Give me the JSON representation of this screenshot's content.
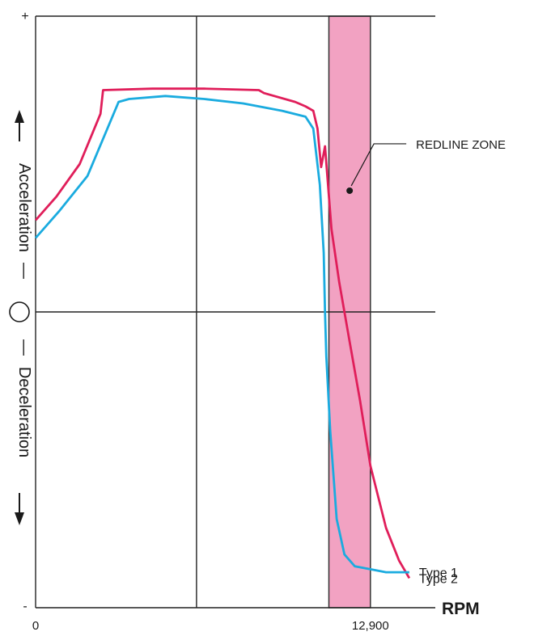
{
  "chart_data": {
    "type": "line",
    "title": "",
    "xlabel": "RPM",
    "x_tick_labels": [
      {
        "value": 0,
        "label": "0"
      },
      {
        "value": 12900,
        "label": "12,900"
      }
    ],
    "xlim": [
      0,
      15400
    ],
    "ylim": [
      -1,
      1
    ],
    "y_labels": {
      "plus": "+",
      "minus": "-",
      "acceleration": "Acceleration",
      "deceleration": "Deceleration",
      "separator": "—"
    },
    "redline_zone": {
      "label": "REDLINE ZONE",
      "x_start": 11300,
      "x_end": 12900,
      "color": "#f2a2c2"
    },
    "grid": true,
    "series": [
      {
        "name": "Type 2",
        "color": "#e01e5a",
        "points": [
          [
            0,
            0.31
          ],
          [
            800,
            0.39
          ],
          [
            1700,
            0.5
          ],
          [
            2500,
            0.67
          ],
          [
            2600,
            0.75
          ],
          [
            4500,
            0.755
          ],
          [
            6500,
            0.755
          ],
          [
            8600,
            0.75
          ],
          [
            8800,
            0.74
          ],
          [
            10000,
            0.71
          ],
          [
            10400,
            0.695
          ],
          [
            10700,
            0.68
          ],
          [
            10860,
            0.62
          ],
          [
            11000,
            0.49
          ],
          [
            11150,
            0.56
          ],
          [
            11400,
            0.28
          ],
          [
            11700,
            0.1
          ],
          [
            12100,
            -0.1
          ],
          [
            12500,
            -0.3
          ],
          [
            12900,
            -0.52
          ],
          [
            13500,
            -0.73
          ],
          [
            14000,
            -0.84
          ],
          [
            14400,
            -0.9
          ]
        ]
      },
      {
        "name": "Type 1",
        "color": "#1aabdf",
        "points": [
          [
            0,
            0.25
          ],
          [
            900,
            0.34
          ],
          [
            2000,
            0.46
          ],
          [
            3200,
            0.71
          ],
          [
            3600,
            0.72
          ],
          [
            5000,
            0.73
          ],
          [
            6500,
            0.72
          ],
          [
            8000,
            0.705
          ],
          [
            9500,
            0.68
          ],
          [
            10400,
            0.66
          ],
          [
            10700,
            0.62
          ],
          [
            10950,
            0.43
          ],
          [
            11100,
            0.2
          ],
          [
            11150,
            0.0
          ],
          [
            11200,
            -0.15
          ],
          [
            11350,
            -0.4
          ],
          [
            11600,
            -0.7
          ],
          [
            11900,
            -0.82
          ],
          [
            12300,
            -0.86
          ],
          [
            12900,
            -0.87
          ],
          [
            13500,
            -0.88
          ],
          [
            14400,
            -0.88
          ]
        ]
      }
    ]
  }
}
